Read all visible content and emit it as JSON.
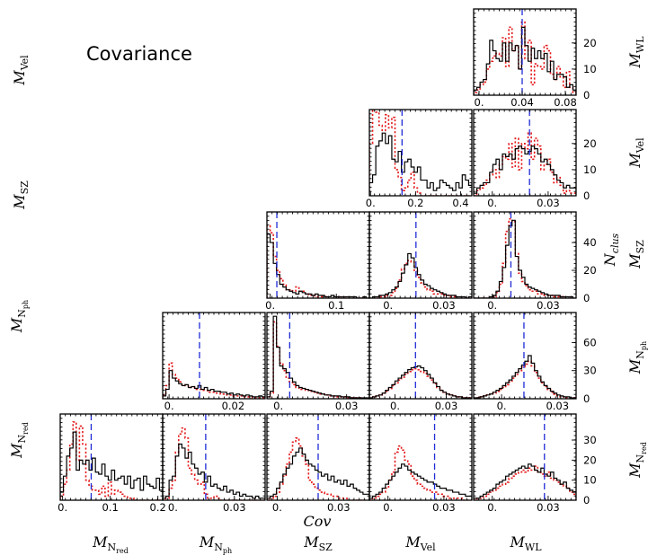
{
  "figure": {
    "title": "Covariance",
    "xlabel": "Cov",
    "right_ylabel": "N",
    "right_ylabel_sub": "clus"
  },
  "chart_data": {
    "type": "histogram-grid",
    "params": [
      {
        "key": "WL",
        "base": "M",
        "sub": "WL",
        "subsub": ""
      },
      {
        "key": "Vel",
        "base": "M",
        "sub": "Vel",
        "subsub": ""
      },
      {
        "key": "SZ",
        "base": "M",
        "sub": "SZ",
        "subsub": ""
      },
      {
        "key": "Nph",
        "base": "M",
        "sub": "N",
        "subsub": "ph"
      },
      {
        "key": "Nred",
        "base": "M",
        "sub": "N",
        "subsub": "red"
      }
    ],
    "columns": [
      "Nred",
      "Nph",
      "SZ",
      "Vel",
      "WL"
    ],
    "rows": [
      {
        "left": "Vel",
        "right": "WL",
        "yticks": [
          0,
          10,
          20
        ],
        "ymax": 33
      },
      {
        "left": "SZ",
        "right": "Vel",
        "yticks": [
          0,
          10,
          20
        ],
        "ymax": 33
      },
      {
        "left": "Nph",
        "right": "SZ",
        "yticks": [
          0,
          20,
          40
        ],
        "ymax": 62
      },
      {
        "left": "Nred",
        "right": "Nph",
        "yticks": [
          0,
          30,
          60
        ],
        "ymax": 92
      },
      {
        "left": "",
        "right": "Nred",
        "yticks": [
          0,
          10,
          20,
          30
        ],
        "ymax": 43
      }
    ],
    "panels": [
      {
        "row": 0,
        "col": 4,
        "xlim": [
          -0.005,
          0.09
        ],
        "xticks": [
          0,
          0.04,
          0.08
        ],
        "xticklabels": [
          "0.",
          "0.04",
          "0.08"
        ],
        "vline": 0.04,
        "black": [
          2,
          3,
          5,
          6,
          12,
          21,
          17,
          14,
          13,
          20,
          13,
          20,
          17,
          19,
          10,
          26,
          19,
          13,
          18,
          14,
          17,
          14,
          16,
          9,
          13,
          6,
          8,
          8,
          7,
          3,
          4,
          2
        ],
        "red": [
          1,
          2,
          4,
          5,
          10,
          13,
          15,
          16,
          15,
          22,
          11,
          26,
          17,
          19,
          10,
          28,
          14,
          21,
          4,
          12,
          11,
          10,
          19,
          17,
          8,
          6,
          11,
          7,
          3,
          9,
          3,
          1
        ]
      },
      {
        "row": 1,
        "col": 3,
        "xlim": [
          -0.005,
          0.45
        ],
        "xticks": [
          0,
          0.2,
          0.4
        ],
        "xticklabels": [
          "0.",
          "0.2",
          "0.4"
        ],
        "vline": 0.14,
        "black": [
          5,
          8,
          19,
          21,
          24,
          20,
          23,
          14,
          13,
          17,
          9,
          13,
          14,
          11,
          9,
          11,
          6,
          6,
          3,
          5,
          2,
          3,
          6,
          5,
          4,
          3,
          2,
          5,
          3,
          8,
          6,
          4
        ],
        "red": [
          20,
          33,
          32,
          27,
          25,
          31,
          26,
          30,
          10,
          7,
          2,
          3,
          6,
          9,
          3,
          1,
          0,
          0,
          0,
          0,
          0,
          0,
          0,
          0,
          0,
          0,
          0,
          0,
          0,
          0,
          0,
          0
        ]
      },
      {
        "row": 1,
        "col": 4,
        "xlim": [
          -0.01,
          0.045
        ],
        "xticks": [
          0,
          0.03
        ],
        "xticklabels": [
          "0.",
          "0.03"
        ],
        "vline": 0.02,
        "black": [
          1,
          3,
          4,
          5,
          5,
          9,
          12,
          14,
          10,
          16,
          15,
          16,
          14,
          18,
          19,
          18,
          16,
          17,
          19,
          18,
          16,
          13,
          14,
          12,
          10,
          8,
          6,
          5,
          3,
          4,
          3,
          3
        ],
        "red": [
          0,
          2,
          3,
          4,
          6,
          8,
          10,
          7,
          12,
          15,
          14,
          20,
          11,
          22,
          10,
          20,
          18,
          24,
          14,
          22,
          19,
          10,
          12,
          14,
          9,
          5,
          7,
          4,
          1,
          2,
          1,
          1
        ]
      },
      {
        "row": 2,
        "col": 2,
        "xlim": [
          -0.005,
          0.15
        ],
        "xticks": [
          0,
          0.1
        ],
        "xticklabels": [
          "0.",
          "0.1"
        ],
        "vline": 0.01,
        "black": [
          46,
          40,
          25,
          17,
          10,
          8,
          6,
          5,
          4,
          3,
          5,
          4,
          3,
          3,
          2,
          3,
          2,
          2,
          1,
          1,
          2,
          1,
          1,
          1,
          1,
          1,
          1,
          1,
          0,
          0,
          1,
          0
        ],
        "red": [
          52,
          47,
          30,
          20,
          14,
          10,
          6,
          6,
          5,
          8,
          5,
          5,
          3,
          2,
          2,
          1,
          1,
          1,
          1,
          0,
          0,
          0,
          1,
          0,
          0,
          0,
          0,
          0,
          0,
          0,
          0,
          0
        ]
      },
      {
        "row": 2,
        "col": 3,
        "xlim": [
          -0.01,
          0.045
        ],
        "xticks": [
          0,
          0.03
        ],
        "xticklabels": [
          "0.",
          "0.03"
        ],
        "vline": 0.015,
        "black": [
          0,
          1,
          1,
          2,
          2,
          3,
          4,
          6,
          8,
          12,
          18,
          24,
          32,
          29,
          22,
          17,
          13,
          10,
          9,
          7,
          6,
          5,
          4,
          3,
          2,
          2,
          2,
          1,
          1,
          1,
          0,
          1
        ],
        "red": [
          0,
          0,
          0,
          1,
          1,
          2,
          2,
          4,
          7,
          13,
          21,
          25,
          27,
          26,
          20,
          15,
          11,
          8,
          6,
          5,
          3,
          3,
          3,
          2,
          2,
          1,
          1,
          0,
          0,
          0,
          0,
          0
        ]
      },
      {
        "row": 2,
        "col": 4,
        "xlim": [
          -0.01,
          0.045
        ],
        "xticks": [
          0,
          0.03
        ],
        "xticklabels": [
          "0.",
          "0.03"
        ],
        "vline": 0.01,
        "black": [
          0,
          0,
          0,
          0,
          0,
          1,
          2,
          5,
          12,
          22,
          38,
          52,
          56,
          30,
          20,
          15,
          10,
          8,
          7,
          6,
          5,
          4,
          3,
          2,
          2,
          2,
          2,
          1,
          1,
          1,
          1,
          0
        ],
        "red": [
          0,
          0,
          0,
          0,
          0,
          0,
          1,
          4,
          10,
          25,
          48,
          57,
          55,
          32,
          18,
          12,
          9,
          6,
          5,
          5,
          3,
          3,
          2,
          2,
          2,
          1,
          1,
          1,
          0,
          0,
          0,
          0
        ]
      },
      {
        "row": 3,
        "col": 1,
        "xlim": [
          -0.002,
          0.03
        ],
        "xticks": [
          0,
          0.02
        ],
        "xticklabels": [
          "0.",
          "0.02"
        ],
        "vline": 0.0095,
        "black": [
          3,
          10,
          30,
          22,
          19,
          16,
          14,
          15,
          12,
          13,
          11,
          14,
          10,
          12,
          9,
          10,
          8,
          8,
          7,
          7,
          5,
          6,
          4,
          5,
          4,
          3,
          4,
          3,
          2,
          2,
          3,
          2
        ],
        "red": [
          4,
          14,
          38,
          26,
          22,
          18,
          15,
          14,
          12,
          12,
          10,
          10,
          9,
          9,
          7,
          7,
          6,
          6,
          5,
          5,
          4,
          4,
          3,
          3,
          3,
          2,
          2,
          2,
          1,
          1,
          1,
          1
        ]
      },
      {
        "row": 3,
        "col": 2,
        "xlim": [
          -0.005,
          0.04
        ],
        "xticks": [
          0,
          0.03
        ],
        "xticklabels": [
          "0.",
          "0.03"
        ],
        "vline": 0.005,
        "black": [
          2,
          8,
          88,
          55,
          35,
          32,
          28,
          22,
          18,
          14,
          12,
          11,
          10,
          9,
          8,
          7,
          6,
          5,
          4,
          4,
          3,
          3,
          3,
          2,
          2,
          2,
          1,
          1,
          1,
          1,
          1,
          1
        ],
        "red": [
          2,
          6,
          82,
          56,
          38,
          30,
          22,
          18,
          15,
          12,
          10,
          10,
          9,
          8,
          7,
          6,
          5,
          5,
          4,
          3,
          3,
          2,
          2,
          2,
          2,
          1,
          1,
          1,
          1,
          1,
          0,
          0
        ]
      },
      {
        "row": 3,
        "col": 3,
        "xlim": [
          -0.015,
          0.045
        ],
        "xticks": [
          0,
          0.03
        ],
        "xticklabels": [
          "0.",
          "0.03"
        ],
        "vline": 0.012,
        "black": [
          1,
          2,
          3,
          4,
          6,
          9,
          12,
          15,
          19,
          22,
          25,
          28,
          31,
          33,
          34,
          35,
          33,
          30,
          26,
          22,
          17,
          13,
          9,
          7,
          5,
          4,
          3,
          2,
          2,
          1,
          1,
          1
        ],
        "red": [
          1,
          2,
          3,
          4,
          6,
          8,
          11,
          14,
          17,
          20,
          23,
          26,
          29,
          31,
          32,
          31,
          29,
          27,
          24,
          20,
          16,
          12,
          9,
          7,
          5,
          4,
          3,
          2,
          2,
          1,
          1,
          1
        ]
      },
      {
        "row": 3,
        "col": 4,
        "xlim": [
          -0.015,
          0.04
        ],
        "xticks": [
          0,
          0.03
        ],
        "xticklabels": [
          "0.",
          "0.03"
        ],
        "vline": 0.012,
        "black": [
          1,
          1,
          2,
          3,
          4,
          5,
          7,
          9,
          11,
          14,
          17,
          20,
          24,
          28,
          32,
          36,
          40,
          46,
          38,
          30,
          24,
          18,
          14,
          11,
          8,
          6,
          4,
          3,
          2,
          2,
          1,
          1
        ],
        "red": [
          1,
          1,
          2,
          3,
          4,
          5,
          6,
          8,
          10,
          12,
          15,
          18,
          22,
          26,
          30,
          34,
          37,
          40,
          35,
          28,
          22,
          17,
          13,
          10,
          7,
          5,
          3,
          2,
          2,
          1,
          1,
          1
        ]
      },
      {
        "row": 4,
        "col": 0,
        "xlim": [
          -0.005,
          0.21
        ],
        "xticks": [
          0,
          0.1,
          0.2
        ],
        "xticklabels": [
          "0.",
          "0.1",
          "0.2"
        ],
        "vline": 0.06,
        "black": [
          4,
          12,
          22,
          26,
          34,
          15,
          20,
          18,
          20,
          15,
          21,
          14,
          13,
          18,
          12,
          10,
          15,
          10,
          11,
          12,
          8,
          12,
          6,
          10,
          11,
          5,
          12,
          8,
          7,
          6,
          11,
          5
        ],
        "red": [
          2,
          8,
          15,
          28,
          39,
          20,
          37,
          28,
          10,
          7,
          5,
          5,
          3,
          7,
          2,
          9,
          3,
          5,
          4,
          3,
          2,
          1,
          1,
          0,
          0,
          0,
          0,
          0,
          0,
          0,
          0,
          0
        ]
      },
      {
        "row": 4,
        "col": 1,
        "xlim": [
          -0.005,
          0.045
        ],
        "xticks": [
          0,
          0.03
        ],
        "xticklabels": [
          "0.",
          "0.03"
        ],
        "vline": 0.016,
        "black": [
          1,
          2,
          10,
          12,
          22,
          28,
          26,
          21,
          24,
          18,
          16,
          13,
          14,
          9,
          12,
          7,
          8,
          6,
          5,
          7,
          4,
          5,
          3,
          4,
          2,
          3,
          2,
          2,
          1,
          2,
          1,
          1
        ],
        "red": [
          0,
          1,
          6,
          10,
          24,
          33,
          36,
          31,
          16,
          13,
          10,
          8,
          9,
          3,
          1,
          1,
          2,
          1,
          0,
          0,
          0,
          0,
          0,
          0,
          0,
          0,
          0,
          0,
          0,
          0,
          0,
          0
        ]
      },
      {
        "row": 4,
        "col": 2,
        "xlim": [
          -0.005,
          0.045
        ],
        "xticks": [
          0,
          0.03
        ],
        "xticklabels": [
          "0.",
          "0.03"
        ],
        "vline": 0.02,
        "black": [
          1,
          2,
          3,
          6,
          9,
          13,
          16,
          18,
          22,
          24,
          26,
          23,
          20,
          18,
          17,
          15,
          14,
          12,
          13,
          10,
          12,
          9,
          10,
          8,
          10,
          7,
          8,
          6,
          5,
          4,
          3,
          3
        ],
        "red": [
          0,
          1,
          2,
          4,
          8,
          12,
          18,
          24,
          29,
          31,
          27,
          22,
          18,
          10,
          8,
          6,
          5,
          4,
          3,
          3,
          2,
          2,
          1,
          1,
          1,
          0,
          0,
          0,
          0,
          0,
          0,
          0
        ]
      },
      {
        "row": 4,
        "col": 3,
        "xlim": [
          -0.01,
          0.045
        ],
        "xticks": [
          0,
          0.03
        ],
        "xticklabels": [
          "0.",
          "0.03"
        ],
        "vline": 0.025,
        "black": [
          1,
          2,
          3,
          4,
          6,
          8,
          10,
          12,
          14,
          16,
          18,
          17,
          15,
          14,
          13,
          12,
          11,
          10,
          9,
          9,
          8,
          7,
          6,
          6,
          5,
          5,
          4,
          4,
          3,
          3,
          2,
          2
        ],
        "red": [
          0,
          1,
          2,
          3,
          4,
          6,
          10,
          14,
          24,
          27,
          25,
          20,
          18,
          12,
          10,
          8,
          7,
          6,
          5,
          4,
          4,
          3,
          3,
          2,
          2,
          1,
          1,
          1,
          1,
          0,
          0,
          0
        ]
      },
      {
        "row": 4,
        "col": 4,
        "xlim": [
          -0.01,
          0.045
        ],
        "xticks": [
          0,
          0.03
        ],
        "xticklabels": [
          "0.",
          "0.03"
        ],
        "vline": 0.028,
        "black": [
          1,
          1,
          2,
          3,
          4,
          5,
          6,
          8,
          9,
          10,
          12,
          13,
          14,
          15,
          16,
          17,
          16,
          18,
          17,
          15,
          14,
          16,
          13,
          12,
          14,
          11,
          10,
          8,
          9,
          6,
          5,
          4
        ],
        "red": [
          0,
          1,
          1,
          2,
          3,
          4,
          5,
          6,
          7,
          8,
          9,
          11,
          12,
          13,
          14,
          15,
          14,
          16,
          15,
          17,
          14,
          13,
          12,
          14,
          11,
          10,
          9,
          8,
          7,
          6,
          4,
          3
        ]
      }
    ]
  }
}
